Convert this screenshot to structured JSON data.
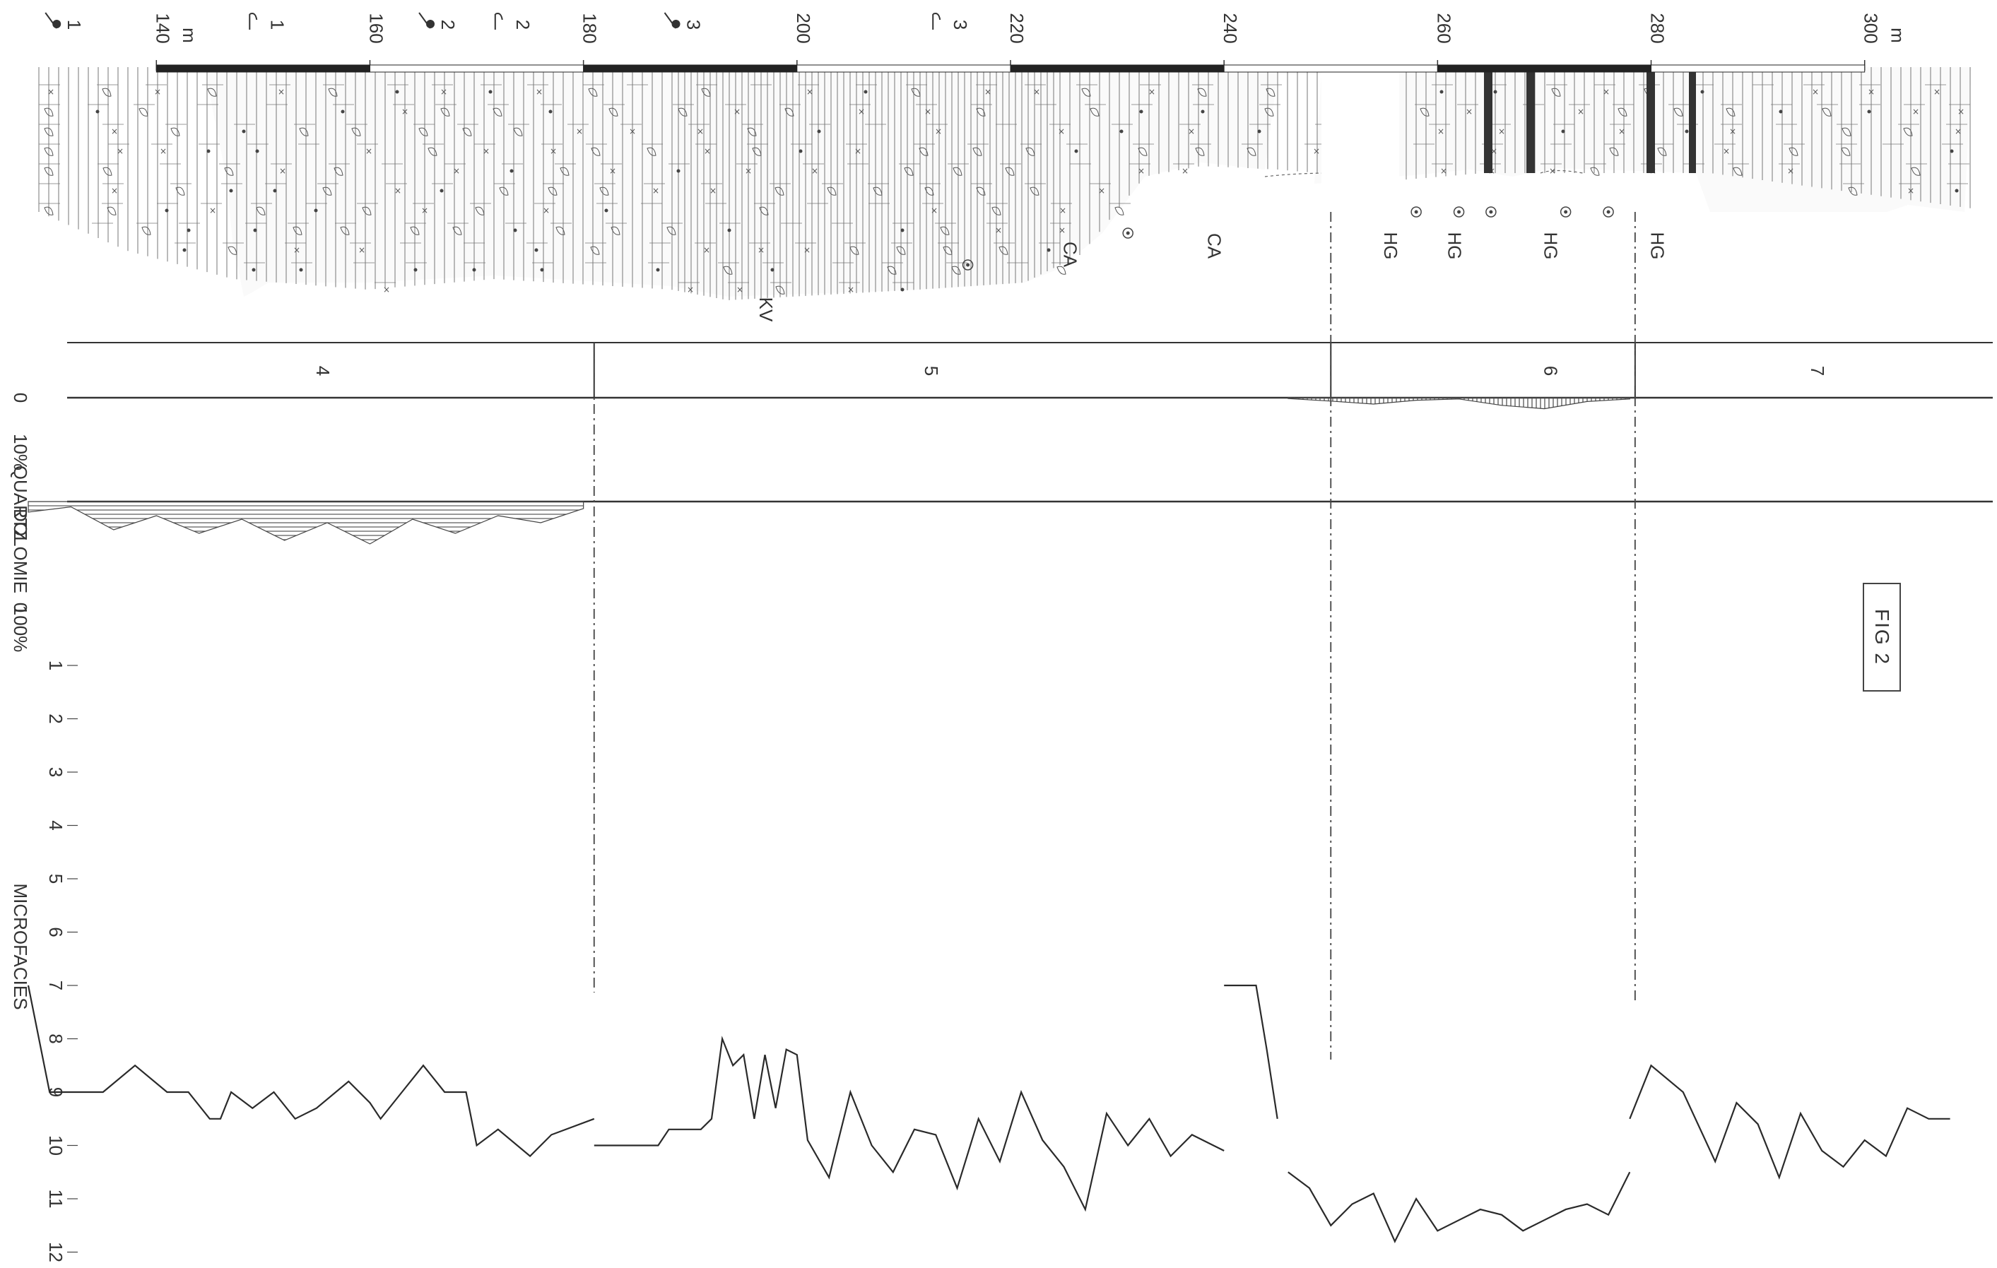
{
  "header": {
    "scale_ticks": [
      "140",
      "160",
      "180",
      "200",
      "220",
      "240",
      "260",
      "280",
      "300"
    ],
    "unit_labels": [
      "m",
      "m"
    ],
    "sample_labels": [
      "1",
      "1",
      "2",
      "2",
      "3",
      "3"
    ],
    "sample_symbols": [
      "hammer-icon",
      "fossil-icon"
    ]
  },
  "annotations": [
    "KV",
    "CA",
    "CA",
    "HG",
    "HG",
    "HG",
    "HG"
  ],
  "units": [
    "4",
    "5",
    "6",
    "7"
  ],
  "axes": {
    "quartz_label": "QUARTZ",
    "quartz_ticks": [
      "0",
      "10%"
    ],
    "dolomie_label": "DOLOMIE",
    "dolomie_ticks": [
      "0",
      "100%"
    ],
    "microfacies_label": "MICROFACIES",
    "microfacies_ticks": [
      "1",
      "2",
      "3",
      "4",
      "5",
      "6",
      "7",
      "8",
      "9",
      "10",
      "11",
      "12"
    ]
  },
  "figure_label": "FIG 2",
  "colors": {
    "ink": "#2a2a2a",
    "paper": "#ffffff",
    "hatch": "#555555"
  },
  "chart_data": {
    "type": "line",
    "xlabel": "m",
    "ylabel": "MICROFACIES",
    "xlim": [
      128,
      312
    ],
    "ylim": [
      1,
      12
    ],
    "series": [
      {
        "x": [
          128,
          130,
          135,
          138,
          141,
          143,
          145,
          146,
          147,
          149,
          151,
          153,
          155,
          158,
          160,
          161,
          163,
          165,
          167,
          169,
          170,
          172,
          175,
          177,
          181
        ],
        "y": [
          7,
          9,
          9,
          8.5,
          9,
          9,
          9.5,
          9.5,
          9,
          9.3,
          9,
          9.5,
          9.3,
          8.8,
          9.2,
          9.5,
          9,
          8.5,
          9,
          9,
          10,
          9.7,
          10.2,
          9.8,
          9.5
        ]
      },
      {
        "x": [
          181,
          184,
          187,
          188,
          191,
          192,
          193,
          194,
          195,
          196,
          197,
          198,
          199,
          200,
          201,
          203,
          205,
          207,
          209,
          211,
          213,
          215,
          217,
          219,
          221,
          223,
          225,
          227,
          229,
          231,
          233,
          235,
          237,
          239,
          240
        ],
        "y": [
          10,
          10,
          10,
          9.7,
          9.7,
          9.5,
          8,
          8.5,
          8.3,
          9.5,
          8.3,
          9.3,
          8.2,
          8.3,
          9.9,
          10.6,
          9,
          10,
          10.5,
          9.7,
          9.8,
          10.8,
          9.5,
          10.3,
          9,
          9.9,
          10.4,
          11.2,
          9.4,
          10,
          9.5,
          10.2,
          9.8,
          10,
          10.1
        ]
      },
      {
        "x": [
          240,
          243,
          244,
          245
        ],
        "y": [
          7,
          7,
          8.2,
          9.5
        ]
      },
      {
        "x": [
          246,
          248,
          250,
          252,
          254,
          256,
          258,
          260,
          262,
          264,
          266,
          268,
          270,
          272,
          274,
          276,
          278
        ],
        "y": [
          10.5,
          10.8,
          11.5,
          11.1,
          10.9,
          11.8,
          11,
          11.6,
          11.4,
          11.2,
          11.3,
          11.6,
          11.4,
          11.2,
          11.1,
          11.3,
          10.5
        ]
      },
      {
        "x": [
          278,
          280,
          283,
          286,
          288,
          290,
          292,
          294,
          296,
          298,
          300,
          302,
          304,
          306,
          308
        ],
        "y": [
          9.5,
          8.5,
          9,
          10.3,
          9.2,
          9.6,
          10.6,
          9.4,
          10.1,
          10.4,
          9.9,
          10.2,
          9.3,
          9.5,
          9.5
        ]
      }
    ],
    "quartz_percent": {
      "x": [
        246,
        250,
        254,
        258,
        262,
        266,
        270,
        274,
        278
      ],
      "y": [
        0.2,
        0.8,
        1.5,
        0.6,
        0.3,
        1.8,
        2.6,
        0.9,
        0.3
      ]
    },
    "dolomie_percent": {
      "x": [
        128,
        132,
        136,
        140,
        144,
        148,
        152,
        156,
        160,
        164,
        168,
        172,
        176,
        180
      ],
      "y": [
        3,
        1.5,
        8,
        4,
        9,
        5,
        11,
        6,
        12,
        5,
        9,
        4,
        6,
        2
      ]
    }
  }
}
